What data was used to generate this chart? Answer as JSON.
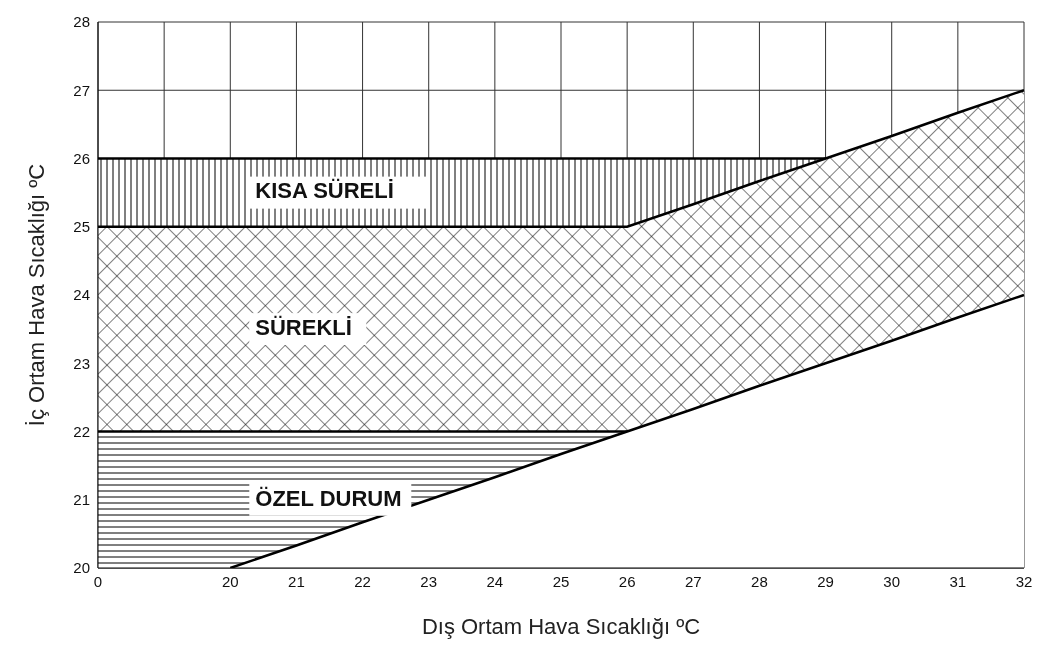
{
  "chart_data": {
    "type": "area",
    "xlabel": "Dış Ortam Hava Sıcaklığı ºC",
    "ylabel": "İç Ortam Hava Sıcaklığı ºC",
    "categories": [
      "0",
      null,
      "20",
      "21",
      "22",
      "23",
      "24",
      "25",
      "26",
      "27",
      "28",
      "29",
      "30",
      "31",
      "32"
    ],
    "ylim": [
      20,
      28
    ],
    "yticks": [
      20,
      21,
      22,
      23,
      24,
      25,
      26,
      27,
      28
    ],
    "grid": true,
    "series": [
      {
        "name": "KISA SÜRELİ",
        "color": "#000000",
        "values": [
          26,
          26,
          26,
          26,
          26,
          26,
          26,
          26,
          26,
          26,
          26,
          26,
          null,
          null,
          null
        ]
      },
      {
        "name": "SÜREKLİ",
        "color": "#000000",
        "values": [
          25,
          25,
          25,
          25,
          25,
          25,
          25,
          25,
          25,
          25.33,
          25.67,
          26,
          26.33,
          26.67,
          27
        ]
      },
      {
        "name": "ÖZEL DURUM",
        "color": "#000000",
        "values": [
          22,
          22,
          22,
          22,
          22,
          22,
          22,
          22,
          22,
          null,
          null,
          null,
          null,
          null,
          null
        ]
      },
      {
        "color": "#000000",
        "values": [
          null,
          null,
          20,
          20.33,
          20.67,
          21,
          21.33,
          21.67,
          22,
          22.33,
          22.67,
          23,
          23.33,
          23.67,
          24
        ]
      }
    ]
  }
}
